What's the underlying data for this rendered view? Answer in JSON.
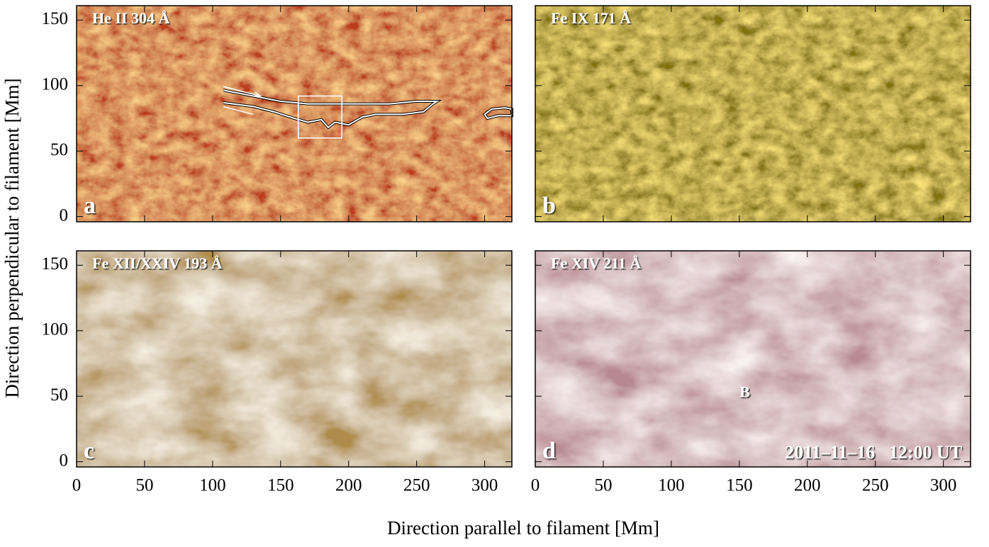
{
  "x_label": "Direction parallel to filament [Mm]",
  "y_label": "Direction perpendicular to filament [Mm]",
  "chart_data": [
    {
      "type": "image",
      "title": "He II 304 Å",
      "panel_label": "a",
      "colormap": [
        "#7e0c04",
        "#f7a040"
      ],
      "xlim": [
        0,
        320
      ],
      "ylim": [
        -4,
        161
      ],
      "xticks": [
        0,
        50,
        100,
        150,
        200,
        250,
        300
      ],
      "yticks": [
        0,
        50,
        100,
        150
      ]
    },
    {
      "type": "image",
      "title": "Fe IX 171 Å",
      "panel_label": "b",
      "colormap": [
        "#3a2c02",
        "#f0c030"
      ],
      "xlim": [
        0,
        320
      ],
      "ylim": [
        -4,
        161
      ],
      "xticks": [
        0,
        50,
        100,
        150,
        200,
        250,
        300
      ],
      "yticks": [
        0,
        50,
        100,
        150
      ]
    },
    {
      "type": "image",
      "title": "Fe XII/XXIV 193 Å",
      "panel_label": "c",
      "colormap": [
        "#6e4412",
        "#f6ecd4"
      ],
      "xlim": [
        0,
        320
      ],
      "ylim": [
        -4,
        161
      ],
      "xticks": [
        0,
        50,
        100,
        150,
        200,
        250,
        300
      ],
      "yticks": [
        0,
        50,
        100,
        150
      ]
    },
    {
      "type": "image",
      "title": "Fe XIV 211 Å",
      "panel_label": "d",
      "colormap": [
        "#7a4048",
        "#f6e4e4"
      ],
      "xlim": [
        0,
        320
      ],
      "ylim": [
        -4,
        161
      ],
      "xticks": [
        0,
        50,
        100,
        150,
        200,
        250,
        300
      ],
      "yticks": [
        0,
        50,
        100,
        150
      ],
      "annotations": [
        "B",
        "2011–11–16   12:00 UT"
      ]
    }
  ]
}
